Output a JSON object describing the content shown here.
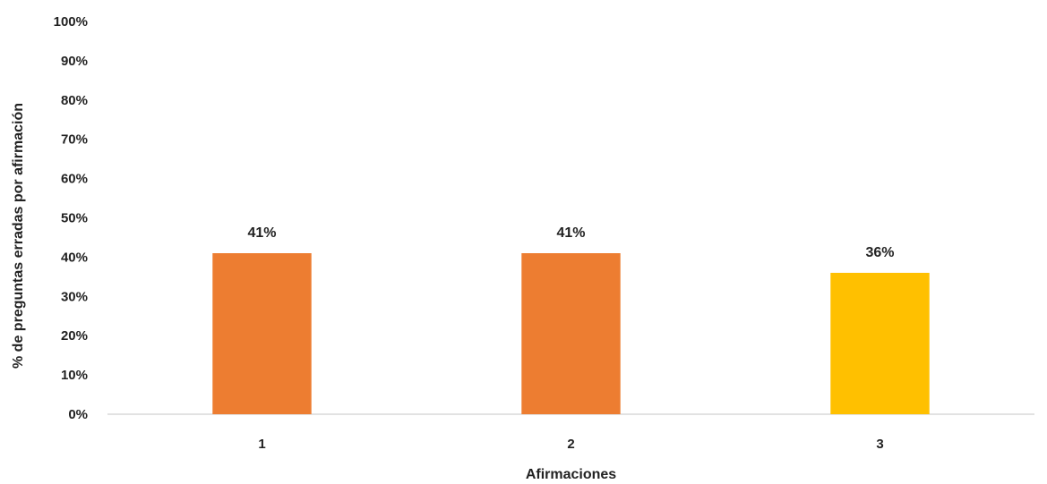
{
  "chart_data": {
    "type": "bar",
    "categories": [
      "1",
      "2",
      "3"
    ],
    "values": [
      41,
      41,
      36
    ],
    "data_labels": [
      "41%",
      "41%",
      "36%"
    ],
    "bar_colors": [
      "#ED7D31",
      "#ED7D31",
      "#FFC000"
    ],
    "xlabel": "Afirmaciones",
    "ylabel": "% de preguntas erradas por afirmación",
    "ylim": [
      0,
      100
    ],
    "yticks": [
      0,
      10,
      20,
      30,
      40,
      50,
      60,
      70,
      80,
      90,
      100
    ],
    "ytick_labels": [
      "0%",
      "10%",
      "20%",
      "30%",
      "40%",
      "50%",
      "60%",
      "70%",
      "80%",
      "90%",
      "100%"
    ],
    "grid": false,
    "legend": "none"
  }
}
